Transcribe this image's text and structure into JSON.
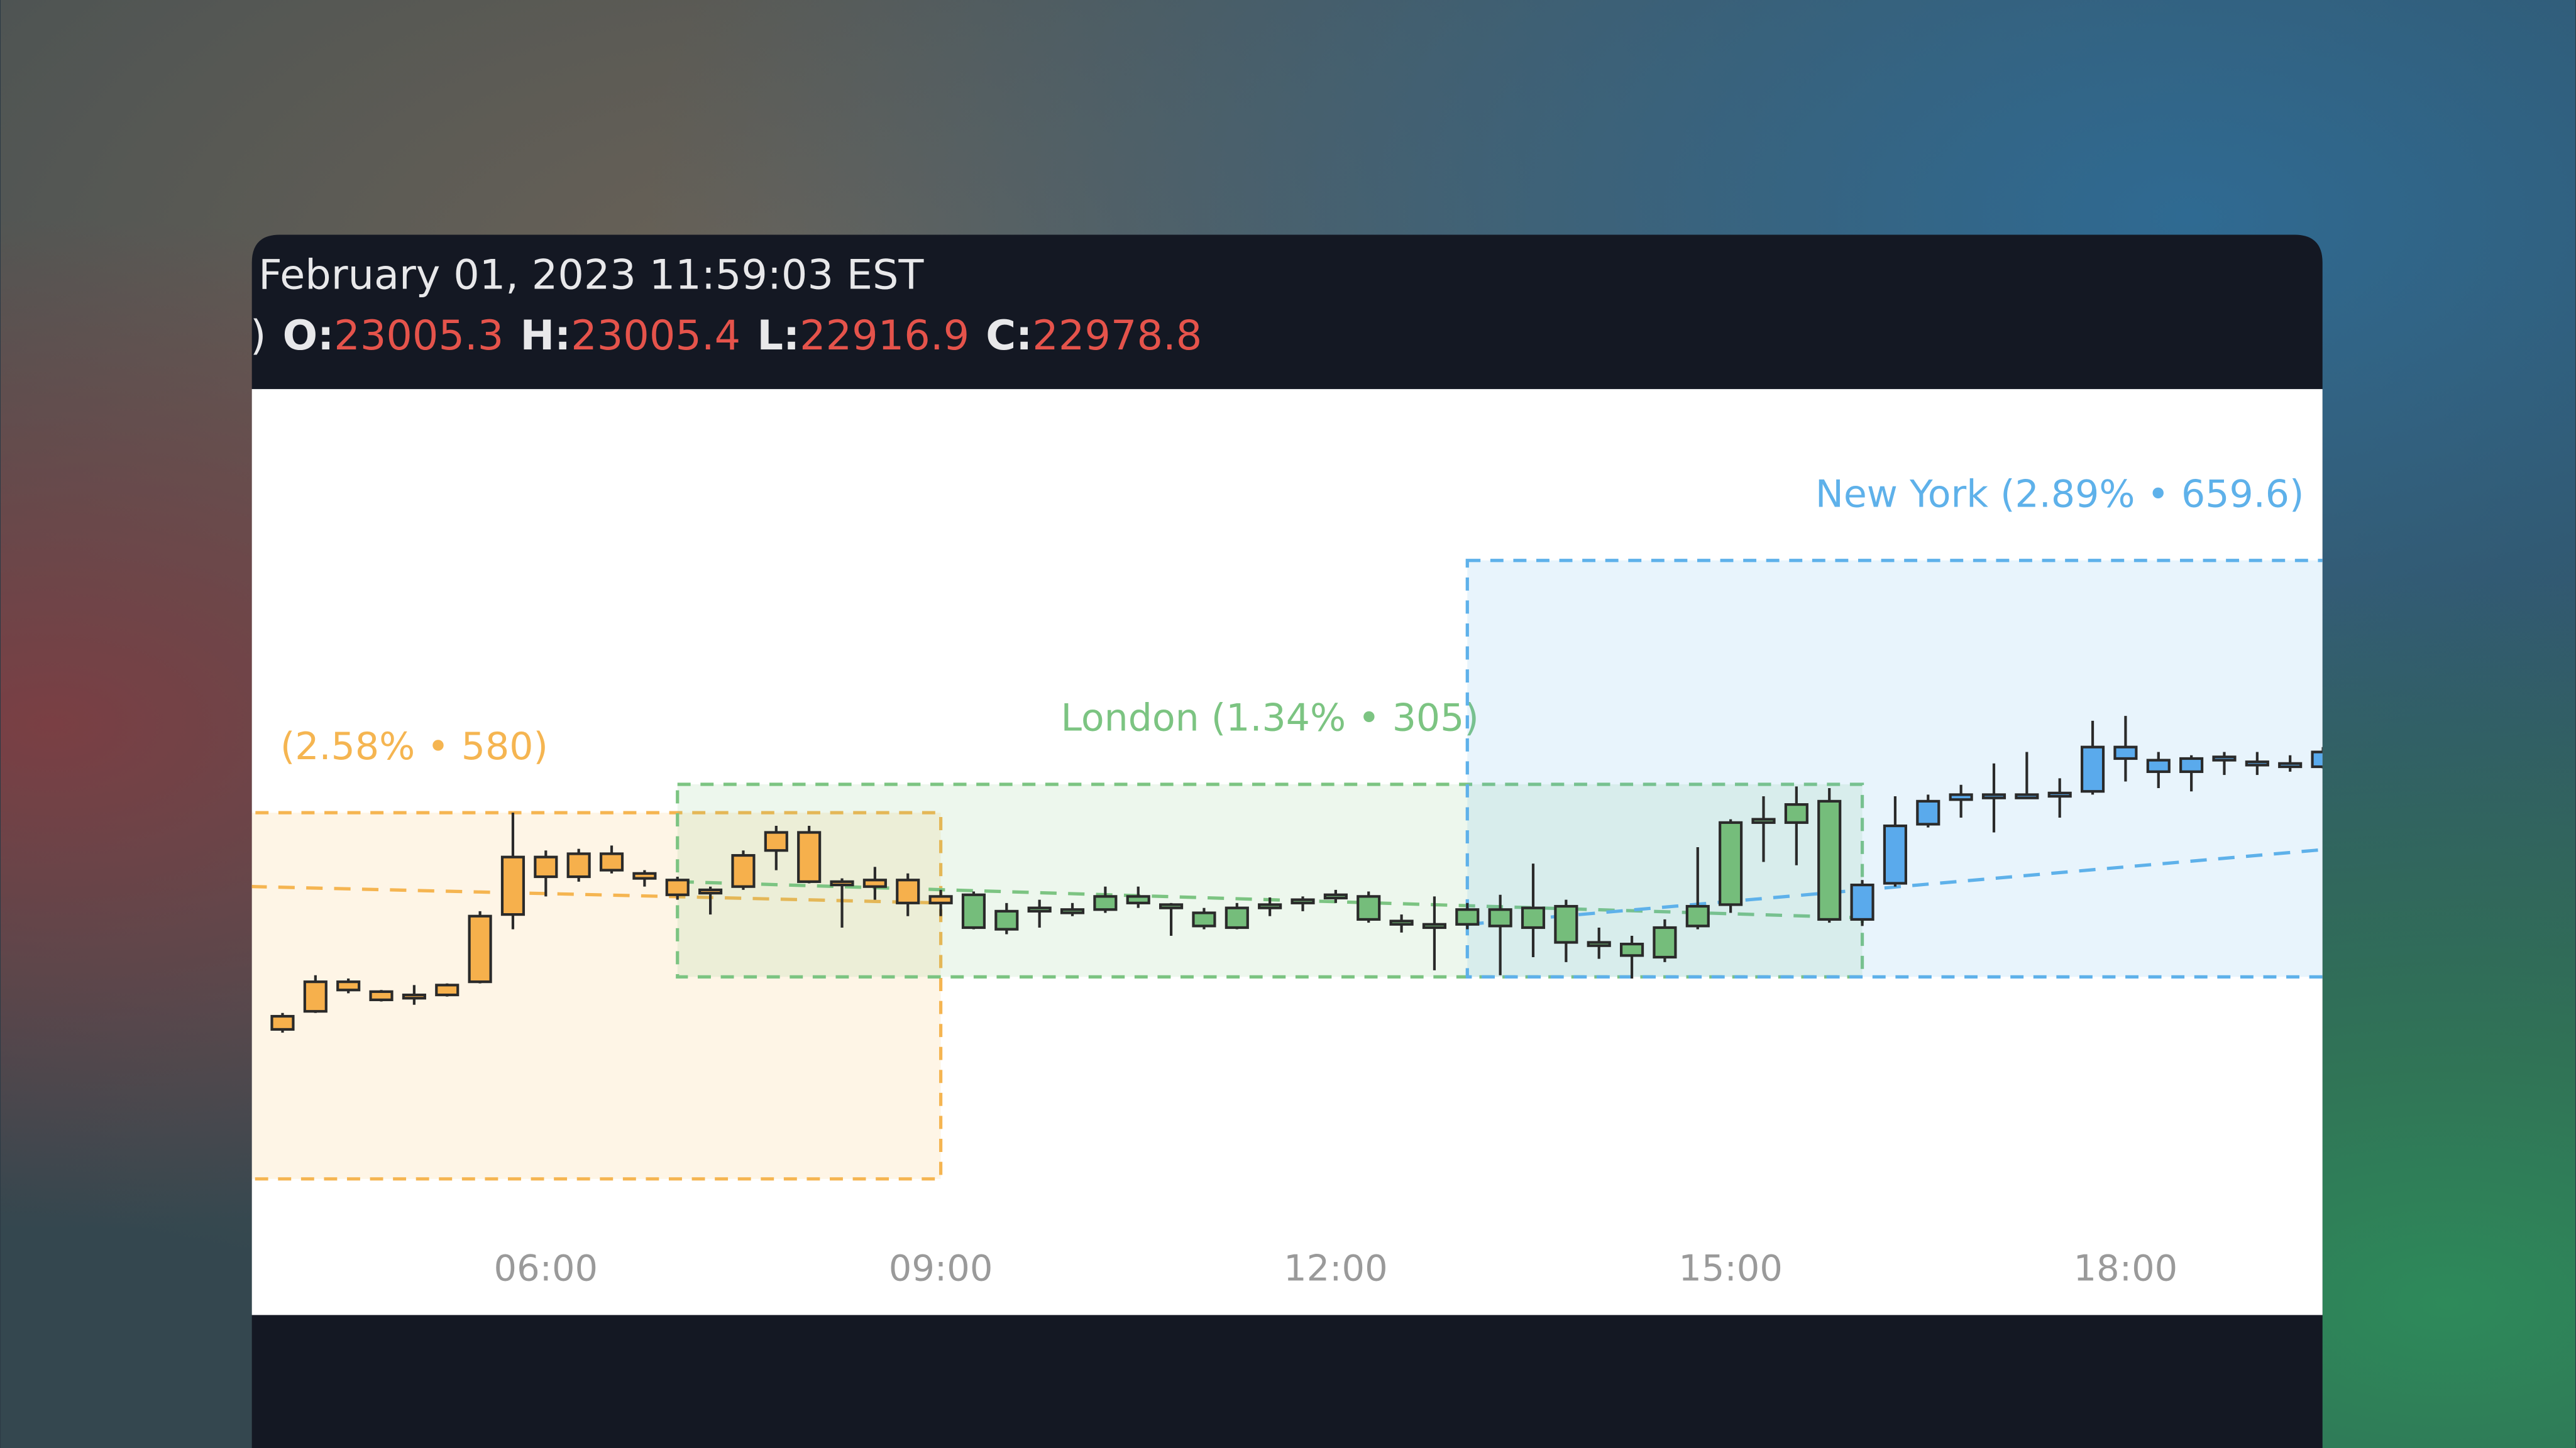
{
  "header": {
    "datetime": "February 01, 2023 11:59:03 EST",
    "prefix": ")",
    "ohlc": [
      {
        "label": "O:",
        "value": 23005.3
      },
      {
        "label": "H:",
        "value": 23005.4
      },
      {
        "label": "L:",
        "value": 22916.9
      },
      {
        "label": "C:",
        "value": 22978.8
      }
    ]
  },
  "chart_data": {
    "type": "candlestick",
    "xlim": [
      3.767,
      19.496
    ],
    "ylim": [
      22400,
      23760
    ],
    "xticks": [
      {
        "value": 6,
        "label": "06:00"
      },
      {
        "value": 9,
        "label": "09:00"
      },
      {
        "value": 12,
        "label": "12:00"
      },
      {
        "value": 15,
        "label": "15:00"
      },
      {
        "value": 18,
        "label": "18:00"
      }
    ],
    "sessions": [
      {
        "label": "(2.58% • 580)",
        "color": "#f5b551",
        "start": 1.0,
        "end": 9.0,
        "low": 22509,
        "high": 23089,
        "trend": [
          22985.8,
          22946
        ]
      },
      {
        "label": "London  (1.34% • 305)",
        "color": "#7cc482",
        "start": 7.0,
        "end": 16.0,
        "low": 22829,
        "high": 23134,
        "trend": [
          22979.8,
          22922.6
        ]
      },
      {
        "label": "New York  (2.89% • 659.6)",
        "color": "#5eb1ea",
        "start": 13.0,
        "end": 22.0,
        "low": 22829,
        "high": 23488.6,
        "trend": [
          22912.2,
          23076
        ]
      }
    ],
    "series": [
      {
        "color": "#f6b04c",
        "x": [
          4.0,
          4.25,
          4.5,
          4.75,
          5.0,
          5.25,
          5.5,
          5.75,
          6.0,
          6.25,
          6.5,
          6.75,
          7.0,
          7.25,
          7.5,
          7.75,
          8.0,
          8.25,
          8.5,
          8.75,
          9.0
        ],
        "open": [
          22745.8,
          22774.4,
          22821.2,
          22805.6,
          22792.6,
          22800.4,
          22821.2,
          22927.8,
          22987.6,
          22987.6,
          23024,
          22992.8,
          22982.4,
          22964.2,
          22972,
          23029.2,
          23057.8,
          22977.2,
          22972,
          22982.4,
          22946
        ],
        "high": [
          22771.8,
          22831.6,
          22826.4,
          22808.2,
          22816,
          22818.6,
          22933,
          23089,
          23029.2,
          23031.8,
          23037,
          22998,
          22987.6,
          22972,
          23029.2,
          23068.2,
          23068.2,
          22985,
          23003.2,
          22992.8,
          22966.8
        ],
        "low": [
          22740.6,
          22771.8,
          22803,
          22790,
          22784.8,
          22797.8,
          22818.6,
          22904.4,
          22956.4,
          22979.8,
          22992.8,
          22972,
          22951.2,
          22927.8,
          22966.8,
          22998,
          22977.2,
          22907,
          22951.2,
          22925.2,
          22925.2
        ],
        "close": [
          22766.6,
          22821.2,
          22808.2,
          22792.6,
          22797.8,
          22816,
          22925.2,
          23018.8,
          23018.8,
          23024,
          22998,
          22985,
          22959,
          22961.6,
          23021.4,
          23057.8,
          22979.8,
          22972,
          22982.4,
          22946,
          22956.4
        ]
      },
      {
        "color": "#75bd7b",
        "x": [
          9.25,
          9.5,
          9.75,
          10.0,
          10.25,
          10.5,
          10.75,
          11.0,
          11.25,
          11.5,
          11.75,
          12.0,
          12.25,
          12.5,
          12.75,
          13.0,
          13.25,
          13.5,
          13.75,
          14.0,
          14.25,
          14.5,
          14.75,
          15.0,
          15.25,
          15.5,
          15.75
        ],
        "open": [
          22959,
          22904.4,
          22930.4,
          22930.4,
          22935.6,
          22956.4,
          22940.8,
          22930.4,
          22907,
          22940.8,
          22943.4,
          22956.4,
          22956.4,
          22914.8,
          22909.6,
          22912.2,
          22935.6,
          22907,
          22940.8,
          22881,
          22881,
          22860.2,
          22909.6,
          22943.4,
          23073.4,
          23073.4,
          23107.2
        ],
        "high": [
          22964.2,
          22946,
          22951.2,
          22946,
          22972,
          22972,
          22946,
          22938.2,
          22946,
          22954.8,
          22956.4,
          22966.8,
          22964.2,
          22927.8,
          22956.4,
          22946,
          22959,
          23008.4,
          22951.2,
          22907,
          22894,
          22920,
          23034.4,
          23078.6,
          23115,
          23130.6,
          23128
        ],
        "low": [
          22904.4,
          22896.6,
          22907,
          22925.2,
          22930.4,
          22938.2,
          22894,
          22904.4,
          22904.4,
          22925.2,
          22933,
          22946,
          22914.8,
          22899.2,
          22839.4,
          22904.4,
          22831.6,
          22860.2,
          22852.4,
          22857.6,
          22826.4,
          22852.4,
          22904.4,
          22930.4,
          23011,
          23005.8,
          22914.8
        ],
        "close": [
          22907,
          22933,
          22935.6,
          22933,
          22956.4,
          22946,
          22935.6,
          22909.6,
          22938.2,
          22938.2,
          22948.6,
          22954.8,
          22920,
          22909.6,
          22907,
          22935.6,
          22909.6,
          22938.2,
          22883.6,
          22878.4,
          22862.8,
          22907,
          22940.8,
          23073.4,
          23076,
          23102,
          22920
        ]
      },
      {
        "color": "#5aaaec",
        "x": [
          16.0,
          16.25,
          16.5,
          16.75,
          17.0,
          17.25,
          17.5,
          17.75,
          18.0,
          18.25,
          18.5,
          18.75,
          19.0,
          19.25,
          19.5
        ],
        "open": [
          22920,
          22977.2,
          23070.8,
          23109.8,
          23115,
          23115,
          23117.6,
          23122.8,
          23193,
          23172.2,
          23154,
          23174.8,
          23167,
          23164.4,
          23161.8
        ],
        "high": [
          22982.4,
          23115,
          23117.6,
          23133.2,
          23167,
          23185.2,
          23143.6,
          23234.6,
          23242.4,
          23185.2,
          23180,
          23185.2,
          23185.2,
          23180,
          23193
        ],
        "low": [
          22909.6,
          22972,
          23065.6,
          23081.2,
          23057.8,
          23112.4,
          23081.2,
          23117.6,
          23138.4,
          23128,
          23122.8,
          23148.8,
          23148.8,
          23154,
          23159.2
        ],
        "close": [
          22974.6,
          23068.2,
          23107.2,
          23117.6,
          23112.4,
          23112.4,
          23112.4,
          23193,
          23174.8,
          23154,
          23174.8,
          23169.6,
          23164.4,
          23161.8,
          23185.2
        ]
      }
    ]
  }
}
